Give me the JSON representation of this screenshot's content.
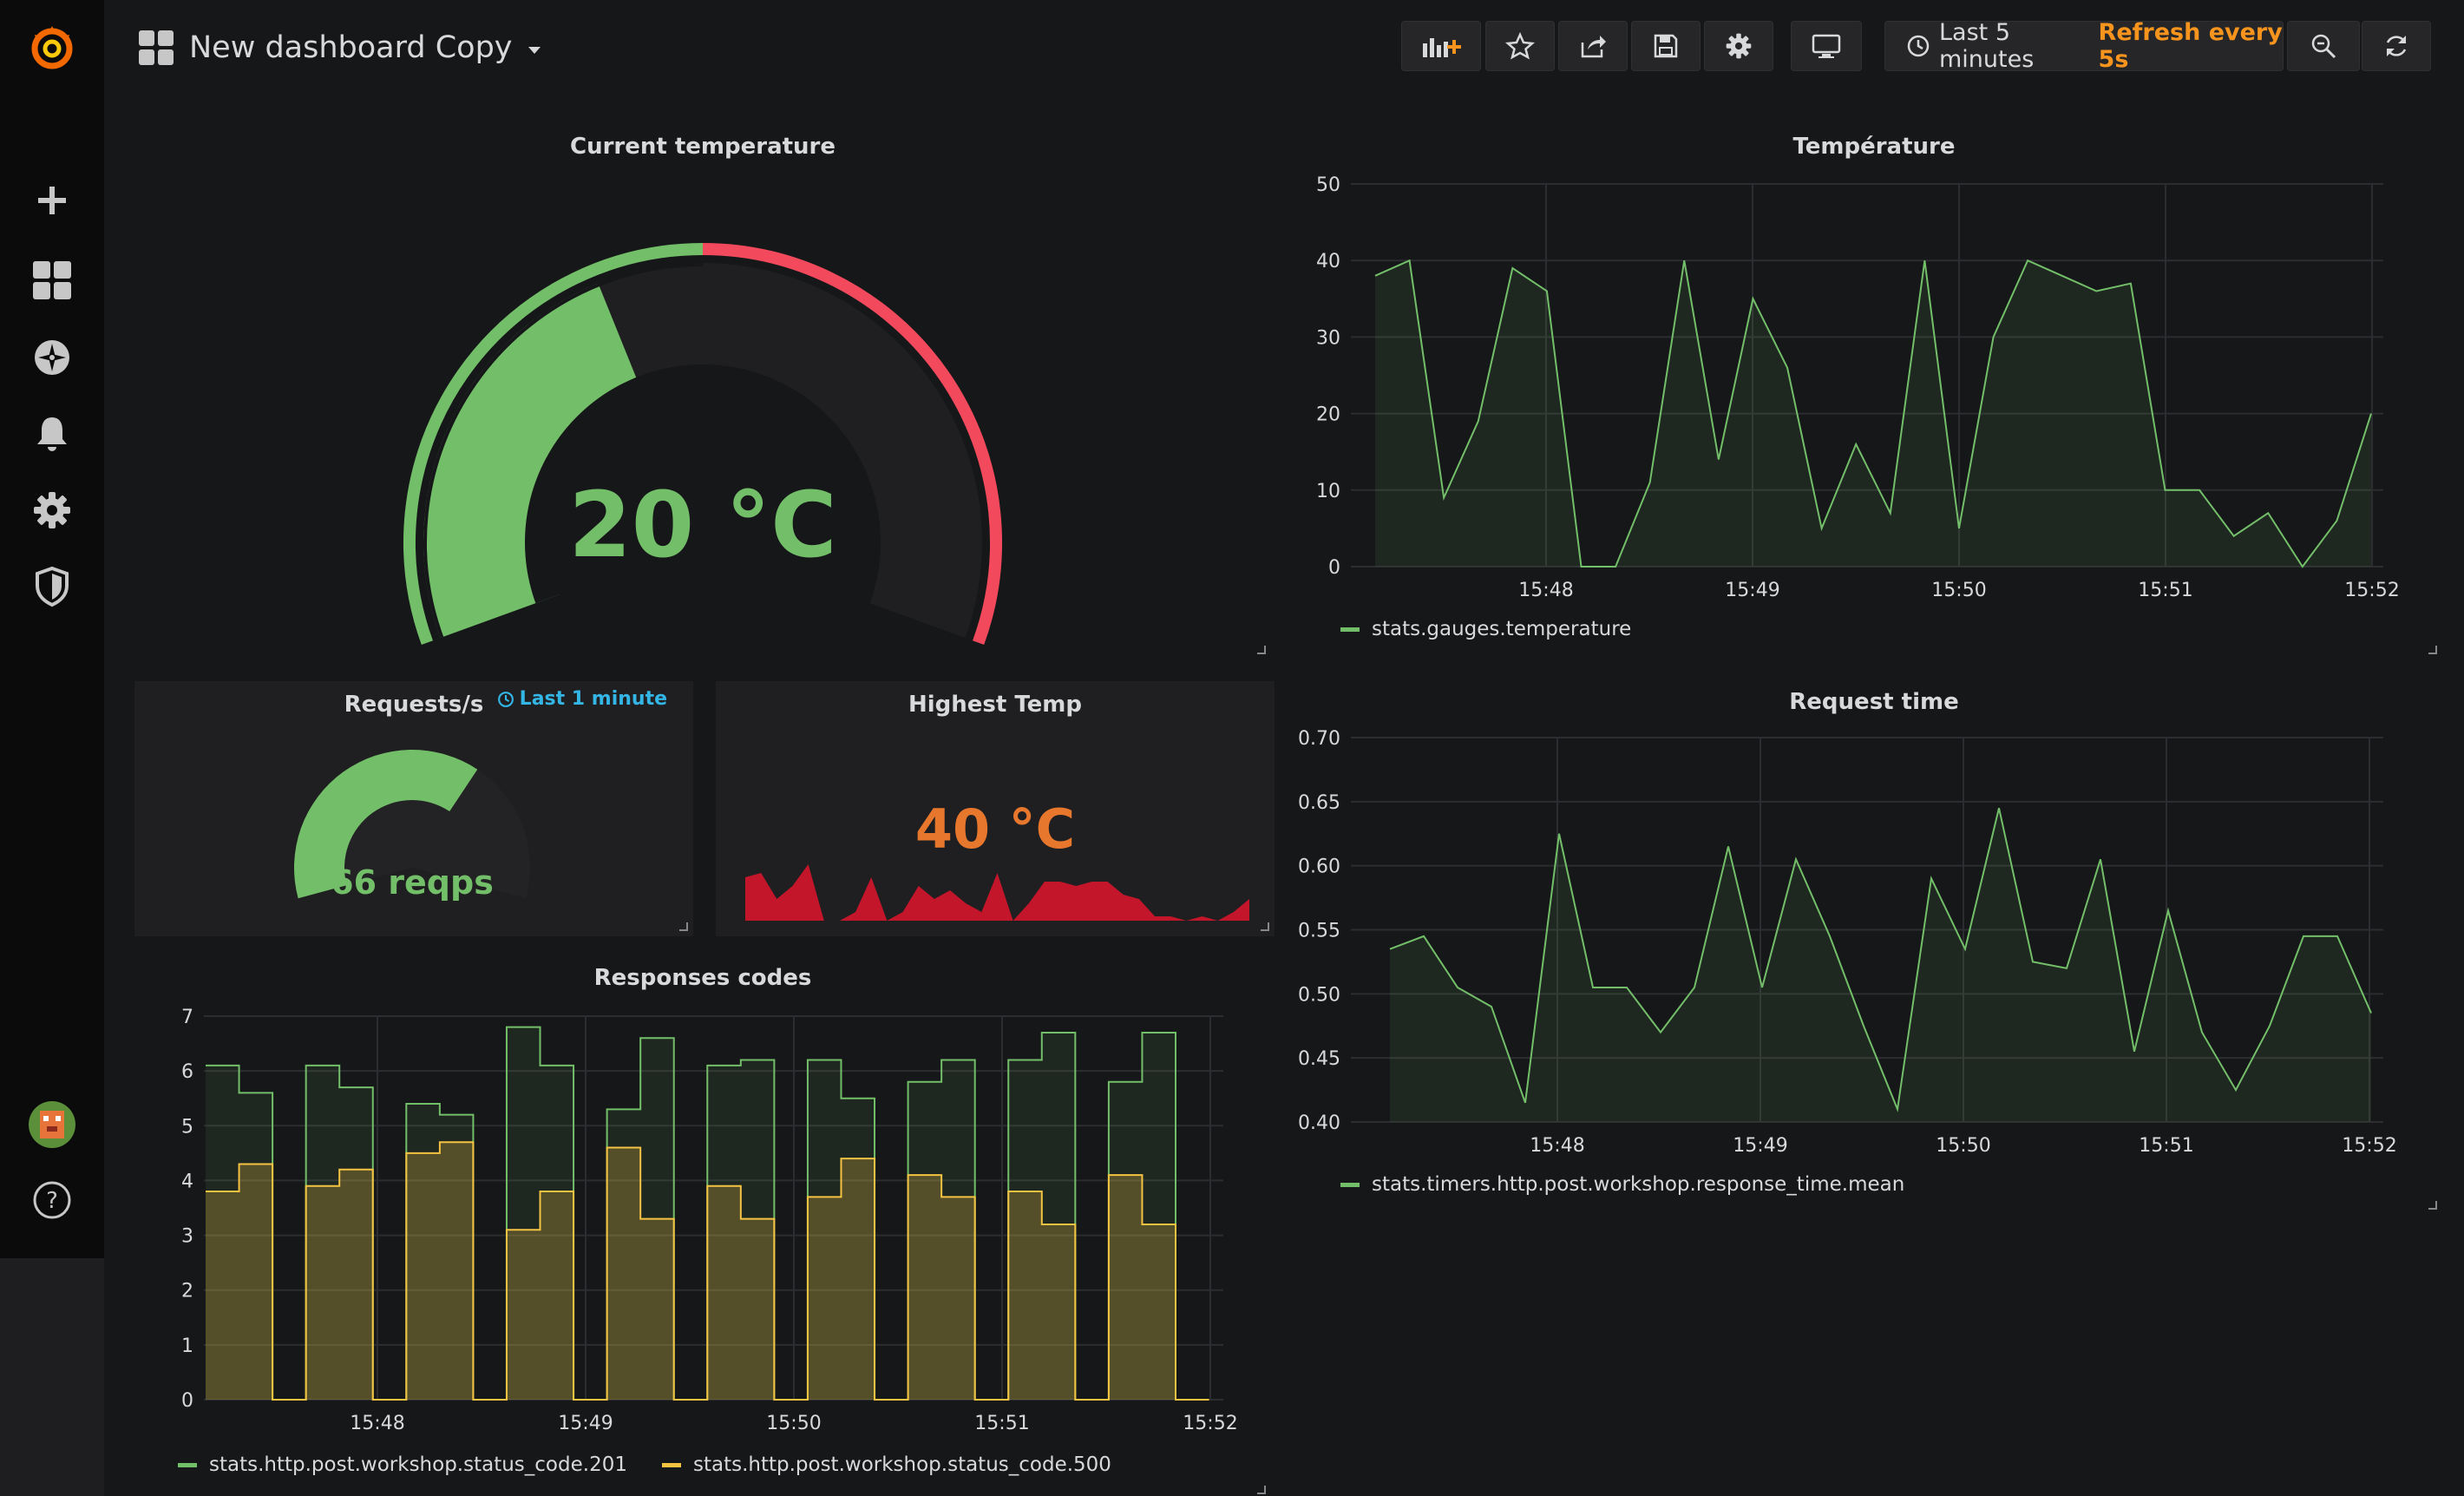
{
  "colors": {
    "green": "#73bf69",
    "red": "#f2495c",
    "orange": "#e8772e",
    "yellow": "#f5c342",
    "blue": "#33b5e5",
    "refresh_orange": "#f7941e",
    "crimson": "#c4162a"
  },
  "header": {
    "title": "New dashboard Copy",
    "time_range": "Last 5 minutes",
    "refresh": "Refresh every 5s",
    "icons": [
      "add-panel-icon",
      "star-icon",
      "share-icon",
      "save-icon",
      "settings-icon",
      "tv-mode-icon",
      "clock-icon",
      "zoom-out-icon",
      "refresh-icon"
    ]
  },
  "sidebar": {
    "icons": [
      "grafana-logo",
      "plus-icon",
      "dashboards-icon",
      "explore-icon",
      "alerting-icon",
      "configuration-icon",
      "shield-icon",
      "avatar",
      "help-icon"
    ]
  },
  "panels": {
    "current_temperature": {
      "title": "Current temperature",
      "value_text": "20 °C",
      "value": 20,
      "min": 0,
      "max": 50,
      "threshold": 25
    },
    "requests": {
      "title": "Requests/s",
      "time_override": "Last 1 minute",
      "value_text": "66 reqps",
      "value": 66,
      "max": 100
    },
    "highest_temp": {
      "title": "Highest Temp",
      "value_text": "40 °C",
      "sparkline": [
        30,
        31,
        25,
        28,
        33,
        20,
        20,
        22,
        30,
        20,
        22,
        28,
        25,
        27,
        24,
        22,
        31,
        20,
        24,
        29,
        29,
        28,
        29,
        29,
        26,
        25,
        21,
        21,
        20,
        21,
        20,
        22,
        25
      ]
    },
    "temperature": {
      "title": "Température",
      "legend": "stats.gauges.temperature"
    },
    "request_time": {
      "title": "Request time",
      "legend": "stats.timers.http.post.workshop.response_time.mean"
    },
    "responses_codes": {
      "title": "Responses codes"
    }
  },
  "chart_data": [
    {
      "type": "area",
      "title": "Température",
      "x": [
        "15:47:15",
        "15:47:25",
        "15:47:35",
        "15:47:45",
        "15:47:55",
        "15:48:05",
        "15:48:15",
        "15:48:25",
        "15:48:35",
        "15:48:45",
        "15:48:55",
        "15:49:05",
        "15:49:15",
        "15:49:25",
        "15:49:35",
        "15:49:45",
        "15:49:55",
        "15:50:05",
        "15:50:15",
        "15:50:25",
        "15:50:35",
        "15:50:45",
        "15:50:55",
        "15:51:05",
        "15:51:15",
        "15:51:25",
        "15:51:35",
        "15:51:45",
        "15:51:55",
        "15:52:05"
      ],
      "x_ticks": [
        "15:48",
        "15:49",
        "15:50",
        "15:51",
        "15:52"
      ],
      "series": [
        {
          "name": "stats.gauges.temperature",
          "values": [
            38,
            40,
            9,
            19,
            39,
            36,
            0,
            0,
            11,
            40,
            14,
            35,
            26,
            5,
            16,
            7,
            40,
            5,
            30,
            40,
            38,
            36,
            37,
            10,
            10,
            4,
            7,
            0,
            6,
            20
          ]
        }
      ],
      "ylim": [
        0,
        50
      ],
      "y_ticks": [
        0,
        10,
        20,
        30,
        40,
        50
      ],
      "grid": true,
      "legend": "bottom-left"
    },
    {
      "type": "area",
      "title": "Request time",
      "x": [
        "15:47:15",
        "15:47:25",
        "15:47:35",
        "15:47:45",
        "15:47:55",
        "15:48:05",
        "15:48:15",
        "15:48:25",
        "15:48:35",
        "15:48:45",
        "15:48:55",
        "15:49:05",
        "15:49:15",
        "15:49:25",
        "15:49:35",
        "15:49:45",
        "15:49:55",
        "15:50:05",
        "15:50:15",
        "15:50:25",
        "15:50:35",
        "15:50:45",
        "15:50:55",
        "15:51:05",
        "15:51:15",
        "15:51:25",
        "15:51:35",
        "15:51:45",
        "15:51:55",
        "15:52:05"
      ],
      "x_ticks": [
        "15:48",
        "15:49",
        "15:50",
        "15:51",
        "15:52"
      ],
      "series": [
        {
          "name": "stats.timers.http.post.workshop.response_time.mean",
          "values": [
            0.535,
            0.545,
            0.505,
            0.49,
            0.415,
            0.625,
            0.505,
            0.505,
            0.47,
            0.505,
            0.615,
            0.505,
            0.605,
            0.545,
            0.475,
            0.41,
            0.59,
            0.535,
            0.645,
            0.525,
            0.52,
            0.605,
            0.455,
            0.565,
            0.47,
            0.425,
            0.475,
            0.545,
            0.545,
            0.485
          ]
        }
      ],
      "ylim": [
        0.4,
        0.7
      ],
      "y_ticks": [
        "0.40",
        "0.45",
        "0.50",
        "0.55",
        "0.60",
        "0.65",
        "0.70"
      ],
      "grid": true,
      "legend": "bottom-left"
    },
    {
      "type": "area",
      "title": "Responses codes",
      "x": [
        "15:47:15",
        "15:47:25",
        "15:47:35",
        "15:47:45",
        "15:47:55",
        "15:48:05",
        "15:48:15",
        "15:48:25",
        "15:48:35",
        "15:48:45",
        "15:48:55",
        "15:49:05",
        "15:49:15",
        "15:49:25",
        "15:49:35",
        "15:49:45",
        "15:49:55",
        "15:50:05",
        "15:50:15",
        "15:50:25",
        "15:50:35",
        "15:50:45",
        "15:50:55",
        "15:51:05",
        "15:51:15",
        "15:51:25",
        "15:51:35",
        "15:51:45",
        "15:51:55",
        "15:52:05"
      ],
      "x_ticks": [
        "15:48",
        "15:49",
        "15:50",
        "15:51",
        "15:52"
      ],
      "series": [
        {
          "name": "stats.http.post.workshop.status_code.201",
          "values": [
            6.1,
            5.6,
            0,
            6.1,
            5.7,
            0,
            5.4,
            5.2,
            0,
            6.8,
            6.1,
            0,
            5.3,
            6.6,
            0,
            6.1,
            6.2,
            0,
            6.2,
            5.5,
            0,
            5.8,
            6.2,
            0,
            6.2,
            6.7,
            0,
            5.8,
            6.7,
            0
          ]
        },
        {
          "name": "stats.http.post.workshop.status_code.500",
          "values": [
            3.8,
            4.3,
            0,
            3.9,
            4.2,
            0,
            4.5,
            4.7,
            0,
            3.1,
            3.8,
            0,
            4.6,
            3.3,
            0,
            3.9,
            3.3,
            0,
            3.7,
            4.4,
            0,
            4.1,
            3.7,
            0,
            3.8,
            3.2,
            0,
            4.1,
            3.2,
            0
          ]
        }
      ],
      "ylim": [
        0,
        7
      ],
      "y_ticks": [
        0,
        1,
        2,
        3,
        4,
        5,
        6,
        7
      ],
      "grid": true,
      "legend": "bottom-left"
    }
  ]
}
